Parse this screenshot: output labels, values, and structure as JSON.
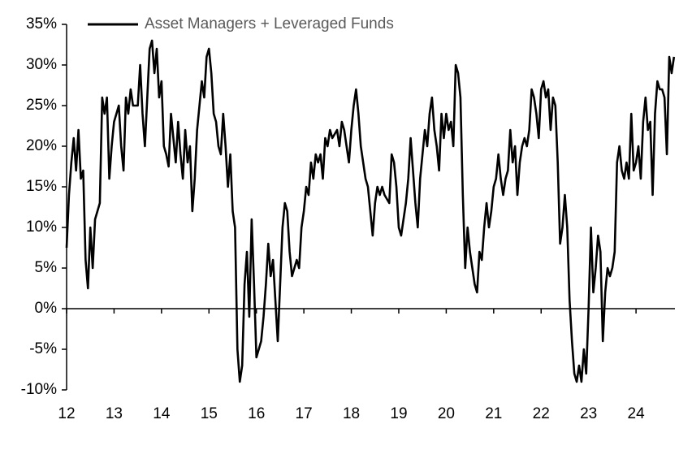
{
  "chart_data": {
    "type": "line",
    "x": [
      12,
      12.05,
      12.1,
      12.15,
      12.2,
      12.25,
      12.3,
      12.35,
      12.4,
      12.45,
      12.5,
      12.55,
      12.6,
      12.65,
      12.7,
      12.75,
      12.8,
      12.85,
      12.9,
      12.95,
      13,
      13.1,
      13.15,
      13.2,
      13.25,
      13.3,
      13.35,
      13.4,
      13.5,
      13.55,
      13.6,
      13.65,
      13.7,
      13.75,
      13.8,
      13.85,
      13.9,
      13.95,
      14,
      14.05,
      14.1,
      14.15,
      14.2,
      14.3,
      14.35,
      14.4,
      14.45,
      14.5,
      14.55,
      14.6,
      14.65,
      14.7,
      14.75,
      14.8,
      14.85,
      14.9,
      14.95,
      15,
      15.05,
      15.1,
      15.15,
      15.2,
      15.25,
      15.3,
      15.35,
      15.4,
      15.45,
      15.5,
      15.55,
      15.6,
      15.65,
      15.7,
      15.75,
      15.8,
      15.85,
      15.9,
      15.95,
      16,
      16.05,
      16.1,
      16.15,
      16.2,
      16.25,
      16.3,
      16.35,
      16.4,
      16.45,
      16.5,
      16.55,
      16.6,
      16.65,
      16.7,
      16.75,
      16.8,
      16.85,
      16.9,
      16.95,
      17,
      17.05,
      17.1,
      17.15,
      17.2,
      17.25,
      17.3,
      17.35,
      17.4,
      17.45,
      17.5,
      17.55,
      17.6,
      17.7,
      17.75,
      17.8,
      17.85,
      17.9,
      17.95,
      18,
      18.05,
      18.1,
      18.15,
      18.2,
      18.3,
      18.35,
      18.4,
      18.45,
      18.5,
      18.55,
      18.6,
      18.65,
      18.7,
      18.8,
      18.85,
      18.9,
      18.95,
      19,
      19.05,
      19.1,
      19.15,
      19.2,
      19.25,
      19.3,
      19.35,
      19.4,
      19.45,
      19.5,
      19.55,
      19.6,
      19.65,
      19.7,
      19.75,
      19.8,
      19.85,
      19.9,
      19.95,
      20,
      20.05,
      20.1,
      20.15,
      20.2,
      20.25,
      20.3,
      20.35,
      20.4,
      20.45,
      20.5,
      20.55,
      20.6,
      20.65,
      20.7,
      20.75,
      20.8,
      20.85,
      20.9,
      20.95,
      21,
      21.05,
      21.1,
      21.15,
      21.2,
      21.25,
      21.3,
      21.35,
      21.4,
      21.45,
      21.5,
      21.55,
      21.6,
      21.65,
      21.7,
      21.75,
      21.8,
      21.85,
      21.9,
      21.95,
      22,
      22.05,
      22.1,
      22.15,
      22.2,
      22.25,
      22.3,
      22.35,
      22.4,
      22.45,
      22.5,
      22.55,
      22.6,
      22.65,
      22.7,
      22.75,
      22.8,
      22.85,
      22.9,
      22.95,
      23,
      23.05,
      23.1,
      23.15,
      23.2,
      23.25,
      23.3,
      23.35,
      23.4,
      23.45,
      23.5,
      23.55,
      23.6,
      23.65,
      23.7,
      23.75,
      23.8,
      23.85,
      23.9,
      23.95,
      24,
      24.05,
      24.1,
      24.15,
      24.2,
      24.25,
      24.3,
      24.35,
      24.4,
      24.45,
      24.5,
      24.55,
      24.6,
      24.65,
      24.7,
      24.75,
      24.8
    ],
    "series": [
      {
        "name": "Asset Managers + Leveraged Funds",
        "color": "#000000",
        "values": [
          7.5,
          14,
          18,
          21,
          17,
          22,
          16,
          17,
          6,
          2.5,
          10,
          5,
          11,
          12,
          13,
          26,
          24,
          26,
          16,
          20,
          23,
          25,
          20,
          17,
          26,
          24,
          27,
          25,
          25,
          30,
          24,
          20,
          26,
          32,
          33,
          29,
          32,
          26,
          28,
          20,
          19,
          17.5,
          24,
          18,
          23,
          19,
          16,
          22,
          18,
          20,
          12,
          16,
          22,
          25,
          28,
          26,
          31,
          32,
          29,
          24,
          23,
          20,
          19,
          24,
          20,
          15,
          19,
          12,
          10,
          -5,
          -9,
          -7,
          3,
          7,
          -1,
          11,
          3,
          -6,
          -5,
          -4,
          -1,
          3,
          8,
          4,
          6,
          1,
          -4,
          3,
          10,
          13,
          12,
          7,
          4,
          5,
          6,
          5,
          10,
          12,
          15,
          14,
          18,
          16,
          19,
          18,
          19,
          16,
          21,
          20,
          22,
          21,
          22,
          20,
          23,
          22,
          20,
          18,
          22,
          25,
          27,
          24,
          20,
          16,
          15,
          12,
          9,
          13,
          15,
          14,
          15,
          14,
          13,
          19,
          18,
          15,
          10,
          9,
          11,
          13,
          16,
          21,
          17,
          13,
          10,
          16,
          19,
          22,
          20,
          24,
          26,
          22,
          20,
          17,
          24,
          21,
          24,
          22,
          23,
          20,
          30,
          29,
          26,
          14,
          5,
          10,
          7,
          5,
          3,
          2,
          7,
          6,
          10,
          13,
          10,
          12,
          15,
          16,
          19,
          16,
          14,
          16,
          17,
          22,
          18,
          20,
          14,
          18,
          20,
          21,
          20,
          22,
          27,
          26,
          24,
          21,
          27,
          28,
          26,
          27,
          22,
          26,
          25,
          18,
          8,
          10,
          14,
          10,
          1,
          -4,
          -8,
          -9,
          -7,
          -9,
          -5,
          -8,
          0,
          10,
          2,
          5,
          9,
          7,
          -4,
          2,
          5,
          4,
          5,
          7,
          18,
          20,
          17,
          16,
          18,
          16,
          24,
          17,
          18,
          20,
          16,
          23,
          26,
          22,
          23,
          14,
          24,
          28,
          27,
          27,
          26,
          19,
          31,
          29,
          31
        ]
      }
    ],
    "xlim": [
      12,
      24.82
    ],
    "xticks": [
      12,
      13,
      14,
      15,
      16,
      17,
      18,
      19,
      20,
      21,
      22,
      23,
      24
    ],
    "ylim": [
      -10,
      35
    ],
    "yticks": [
      {
        "value": -10,
        "label": "-10%"
      },
      {
        "value": -5,
        "label": "-5%"
      },
      {
        "value": 0,
        "label": "0%"
      },
      {
        "value": 5,
        "label": "5%"
      },
      {
        "value": 10,
        "label": "10%"
      },
      {
        "value": 15,
        "label": "15%"
      },
      {
        "value": 20,
        "label": "20%"
      },
      {
        "value": 25,
        "label": "25%"
      },
      {
        "value": 30,
        "label": "30%"
      },
      {
        "value": 35,
        "label": "35%"
      }
    ]
  }
}
